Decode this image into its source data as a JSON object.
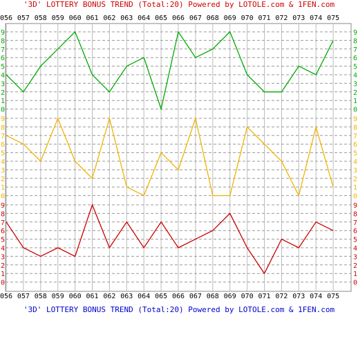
{
  "title": "'3D' LOTTERY BONUS TREND (Total:20)  Powered by LOTOLE.com & 1FEN.com",
  "chart_data": {
    "type": "line",
    "title": "'3D' LOTTERY BONUS TREND (Total:20)  Powered by LOTOLE.com & 1FEN.com",
    "categories": [
      "056",
      "057",
      "058",
      "059",
      "060",
      "061",
      "062",
      "063",
      "064",
      "065",
      "066",
      "067",
      "068",
      "069",
      "070",
      "071",
      "072",
      "073",
      "074",
      "075"
    ],
    "ytick_labels": [
      "0",
      "1",
      "2",
      "3",
      "4",
      "5",
      "6",
      "7",
      "8",
      "9"
    ],
    "ylim": [
      0,
      9
    ],
    "grid": true,
    "series": [
      {
        "color": "#00aa00",
        "values": [
          4,
          2,
          5,
          7,
          9,
          4,
          2,
          5,
          6,
          0,
          9,
          6,
          7,
          9,
          4,
          2,
          2,
          5,
          4,
          8
        ]
      },
      {
        "color": "#f0b400",
        "values": [
          7,
          6,
          4,
          9,
          4,
          2,
          9,
          1,
          0,
          5,
          3,
          9,
          0,
          0,
          8,
          6,
          4,
          0,
          8,
          1
        ]
      },
      {
        "color": "#cc0000",
        "values": [
          7,
          4,
          3,
          4,
          3,
          9,
          4,
          7,
          4,
          7,
          4,
          5,
          6,
          8,
          4,
          1,
          5,
          4,
          7,
          6
        ]
      }
    ]
  }
}
